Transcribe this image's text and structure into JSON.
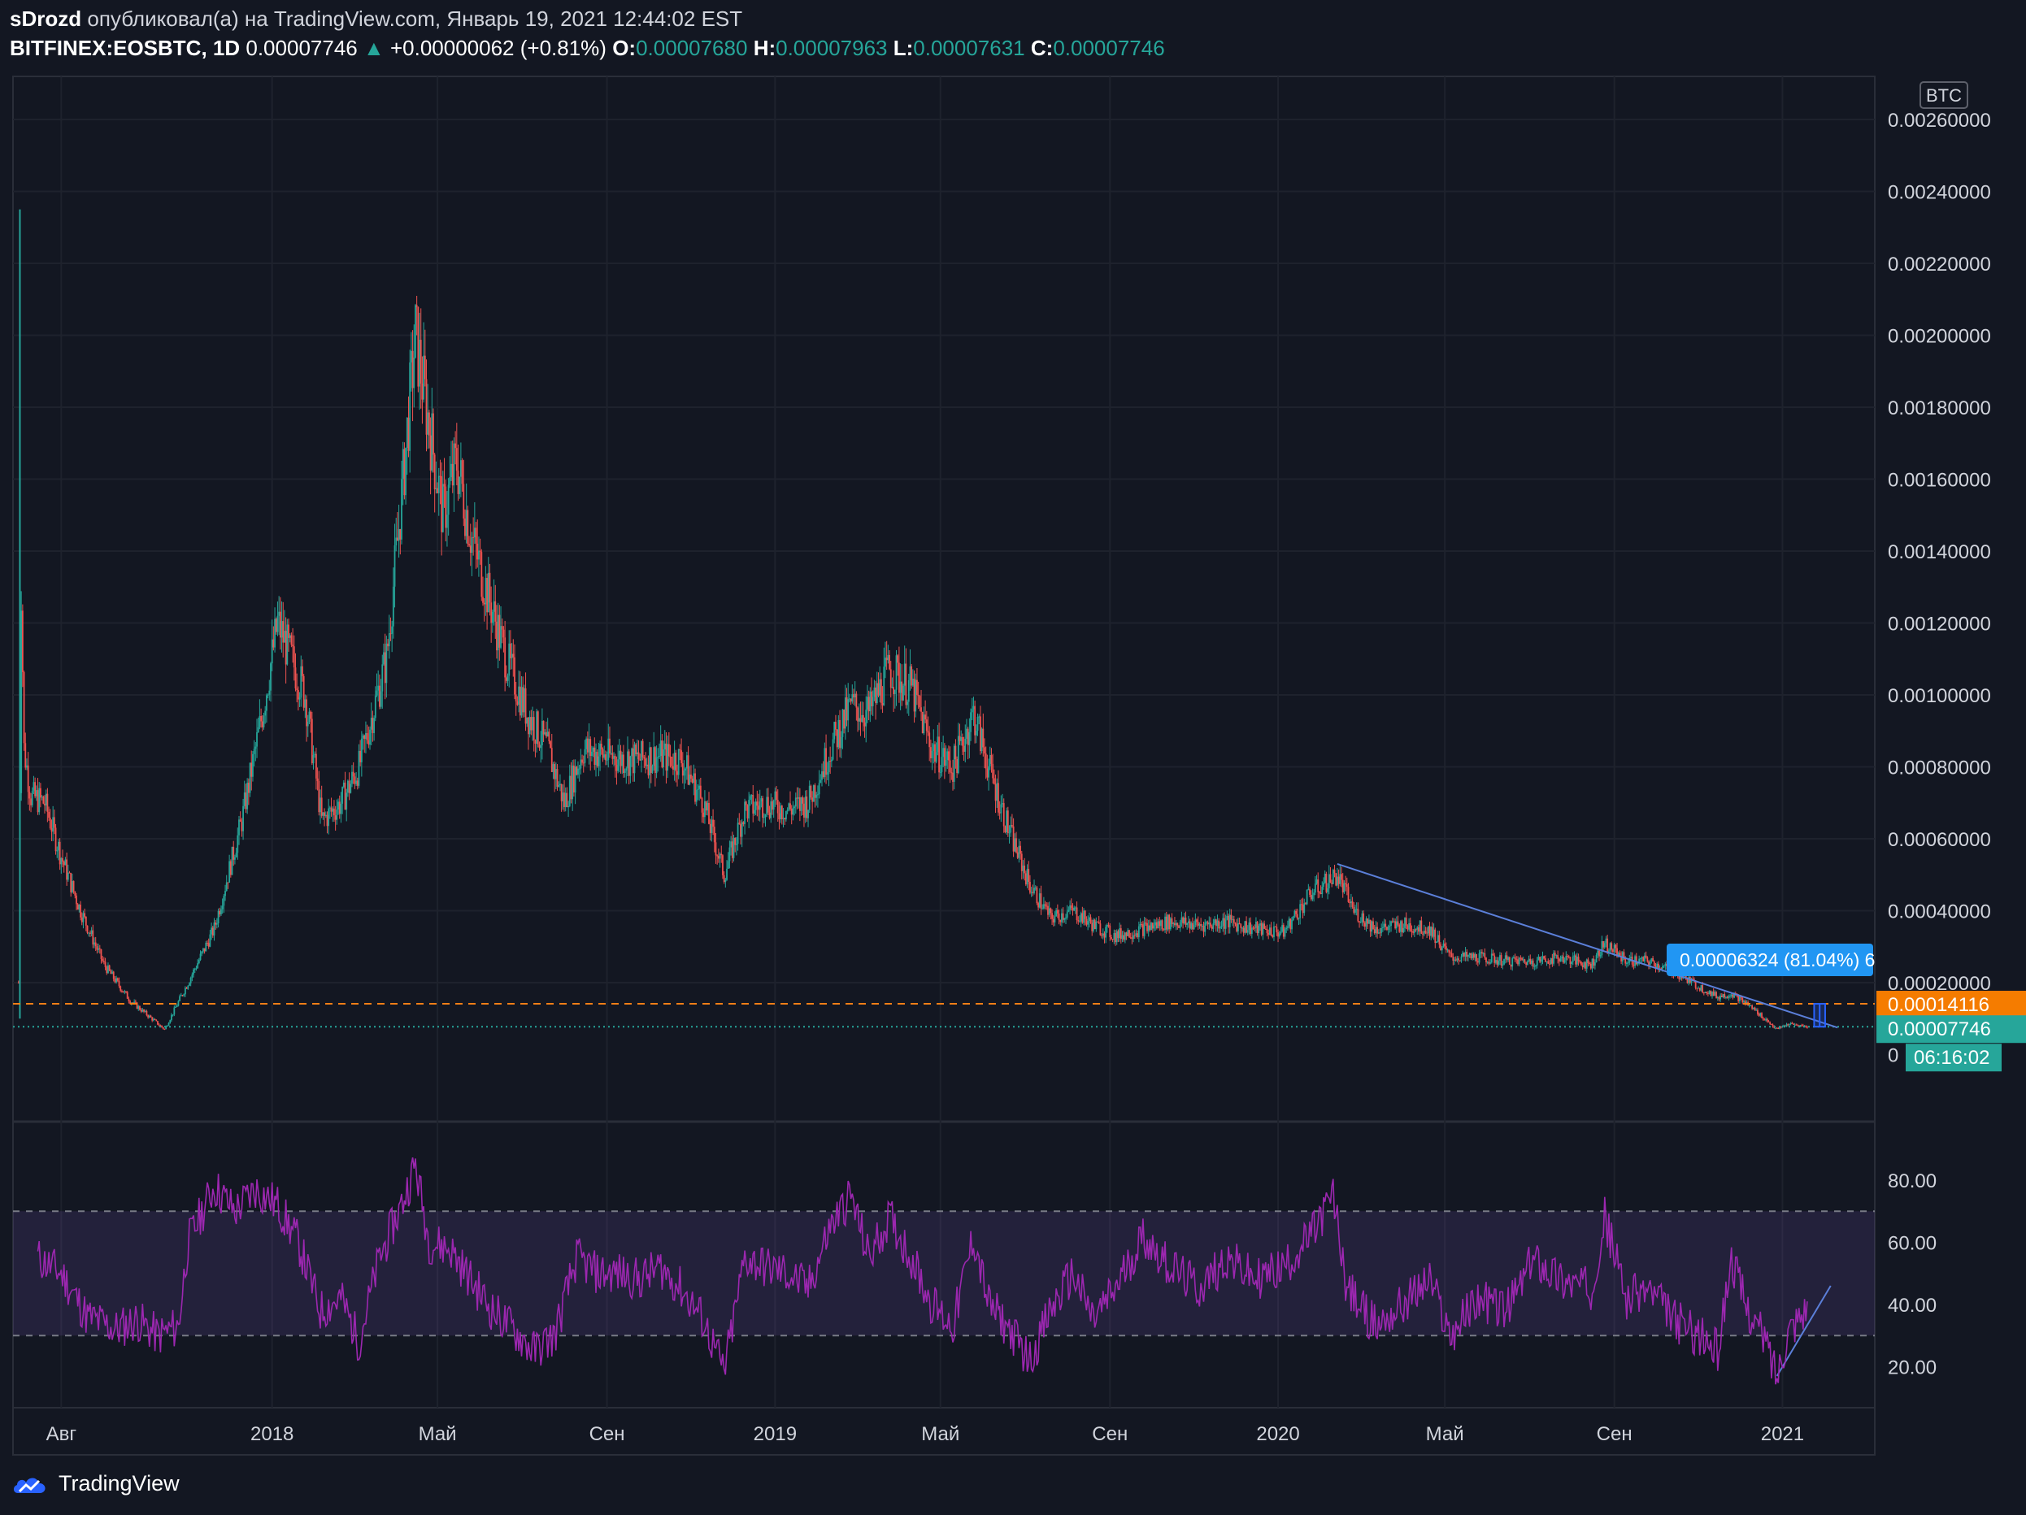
{
  "header": {
    "author": "sDrozd",
    "published_text": "опубликовал(а) на TradingView.com, Январь 19, 2021 12:44:02 EST",
    "symbol": "BITFINEX:EOSBTC, 1D",
    "last_price": "0.00007746",
    "change": "+0.00000062 (+0.81%)",
    "open_label": "O:",
    "open": "0.00007680",
    "high_label": "H:",
    "high": "0.00007963",
    "low_label": "L:",
    "low": "0.00007631",
    "close_label": "C:",
    "close": "0.00007746"
  },
  "footer": {
    "brand": "TradingView"
  },
  "colors": {
    "background": "#131722",
    "up": "#26a69a",
    "down": "#ef5350",
    "rsi": "#9c27b0",
    "trendline": "#5b7fd9",
    "orange_line": "#f57f17"
  },
  "chart_data": [
    {
      "type": "candlestick",
      "currency_label": "BTC",
      "y_ticks": [
        "0.00260000",
        "0.00240000",
        "0.00220000",
        "0.00200000",
        "0.00180000",
        "0.00160000",
        "0.00140000",
        "0.00120000",
        "0.00100000",
        "0.00080000",
        "0.00060000",
        "0.00040000",
        "0.00020000",
        "0"
      ],
      "ylim": [
        -4e-05,
        0.00275
      ],
      "x_ticks": [
        "Авг",
        "2018",
        "Май",
        "Сен",
        "2019",
        "Май",
        "Сен",
        "2020",
        "Май",
        "Сен",
        "2021"
      ],
      "price_labels": {
        "orange_level": "0.00014116",
        "last_price": "0.00007746",
        "countdown": "06:16:02",
        "measure": "0.00006324 (81.04%) 6"
      },
      "levels": {
        "orange": 0.00014116,
        "last": 7.746e-05
      },
      "trendline": {
        "from": [
          "2020-02-13",
          0.00053
        ],
        "to": [
          "2021-02-10",
          7.5e-05
        ]
      },
      "approx_close_path": [
        [
          "2017-07-01",
          0.0002
        ],
        [
          "2017-07-03",
          0.0013
        ],
        [
          "2017-07-05",
          0.00085
        ],
        [
          "2017-07-10",
          0.00072
        ],
        [
          "2017-07-20",
          0.0007
        ],
        [
          "2017-08-01",
          0.00055
        ],
        [
          "2017-08-15",
          0.0004
        ],
        [
          "2017-09-01",
          0.00025
        ],
        [
          "2017-09-20",
          0.00015
        ],
        [
          "2017-10-15",
          7e-05
        ],
        [
          "2017-11-01",
          0.0002
        ],
        [
          "2017-11-20",
          0.00035
        ],
        [
          "2017-12-10",
          0.00065
        ],
        [
          "2017-12-25",
          0.00095
        ],
        [
          "2018-01-05",
          0.0012
        ],
        [
          "2018-01-15",
          0.0011
        ],
        [
          "2018-01-25",
          0.001
        ],
        [
          "2018-02-06",
          0.00065
        ],
        [
          "2018-02-20",
          0.0007
        ],
        [
          "2018-03-05",
          0.0008
        ],
        [
          "2018-03-25",
          0.0011
        ],
        [
          "2018-04-05",
          0.00155
        ],
        [
          "2018-04-15",
          0.002
        ],
        [
          "2018-04-25",
          0.00175
        ],
        [
          "2018-05-05",
          0.0015
        ],
        [
          "2018-05-15",
          0.00165
        ],
        [
          "2018-05-25",
          0.00145
        ],
        [
          "2018-06-05",
          0.0013
        ],
        [
          "2018-06-20",
          0.0011
        ],
        [
          "2018-07-05",
          0.00095
        ],
        [
          "2018-07-20",
          0.00085
        ],
        [
          "2018-08-01",
          0.0007
        ],
        [
          "2018-08-15",
          0.00085
        ],
        [
          "2018-09-01",
          0.00083
        ],
        [
          "2018-09-20",
          0.00082
        ],
        [
          "2018-10-10",
          0.00083
        ],
        [
          "2018-10-25",
          0.00082
        ],
        [
          "2018-11-10",
          0.0007
        ],
        [
          "2018-11-25",
          0.0005
        ],
        [
          "2018-12-10",
          0.00068
        ],
        [
          "2018-12-25",
          0.0007
        ],
        [
          "2019-01-10",
          0.00068
        ],
        [
          "2019-01-25",
          0.0007
        ],
        [
          "2019-02-10",
          0.00085
        ],
        [
          "2019-02-25",
          0.00097
        ],
        [
          "2019-03-10",
          0.00095
        ],
        [
          "2019-03-25",
          0.00107
        ],
        [
          "2019-04-10",
          0.00102
        ],
        [
          "2019-04-25",
          0.00085
        ],
        [
          "2019-05-10",
          0.0008
        ],
        [
          "2019-05-25",
          0.00095
        ],
        [
          "2019-06-05",
          0.0008
        ],
        [
          "2019-06-20",
          0.00062
        ],
        [
          "2019-07-05",
          0.00047
        ],
        [
          "2019-07-20",
          0.00038
        ],
        [
          "2019-08-05",
          0.0004
        ],
        [
          "2019-08-20",
          0.00036
        ],
        [
          "2019-09-05",
          0.00033
        ],
        [
          "2019-09-25",
          0.00035
        ],
        [
          "2019-10-15",
          0.00037
        ],
        [
          "2019-11-05",
          0.00036
        ],
        [
          "2019-11-25",
          0.00037
        ],
        [
          "2019-12-15",
          0.00035
        ],
        [
          "2020-01-05",
          0.00034
        ],
        [
          "2020-01-25",
          0.00045
        ],
        [
          "2020-02-13",
          0.0005
        ],
        [
          "2020-02-25",
          0.0004
        ],
        [
          "2020-03-12",
          0.00035
        ],
        [
          "2020-04-01",
          0.00036
        ],
        [
          "2020-04-20",
          0.00035
        ],
        [
          "2020-05-05",
          0.00027
        ],
        [
          "2020-05-25",
          0.00027
        ],
        [
          "2020-06-15",
          0.00026
        ],
        [
          "2020-07-05",
          0.00026
        ],
        [
          "2020-07-25",
          0.00027
        ],
        [
          "2020-08-15",
          0.00025
        ],
        [
          "2020-08-25",
          0.00031
        ],
        [
          "2020-09-10",
          0.00026
        ],
        [
          "2020-09-25",
          0.00026
        ],
        [
          "2020-10-15",
          0.00023
        ],
        [
          "2020-11-01",
          0.00019
        ],
        [
          "2020-11-15",
          0.00016
        ],
        [
          "2020-11-25",
          0.00017
        ],
        [
          "2020-12-10",
          0.00013
        ],
        [
          "2020-12-22",
          9e-05
        ],
        [
          "2020-12-28",
          7e-05
        ],
        [
          "2021-01-05",
          8.5e-05
        ],
        [
          "2021-01-19",
          7.746e-05
        ]
      ]
    },
    {
      "type": "line",
      "name": "RSI",
      "y_ticks": [
        "80.00",
        "60.00",
        "40.00",
        "20.00"
      ],
      "ylim": [
        10,
        92
      ],
      "bands": [
        30,
        70
      ],
      "trendline": {
        "from": [
          "2020-12-28",
          17
        ],
        "to": [
          "2021-02-05",
          46
        ]
      },
      "approx_series": [
        [
          "2017-07-15",
          55
        ],
        [
          "2017-08-01",
          50
        ],
        [
          "2017-08-20",
          36
        ],
        [
          "2017-09-10",
          32
        ],
        [
          "2017-09-25",
          35
        ],
        [
          "2017-10-10",
          30
        ],
        [
          "2017-10-25",
          33
        ],
        [
          "2017-11-01",
          60
        ],
        [
          "2017-11-20",
          78
        ],
        [
          "2017-12-05",
          70
        ],
        [
          "2017-12-20",
          77
        ],
        [
          "2018-01-05",
          72
        ],
        [
          "2018-01-20",
          60
        ],
        [
          "2018-02-05",
          38
        ],
        [
          "2018-02-20",
          42
        ],
        [
          "2018-03-05",
          28
        ],
        [
          "2018-03-20",
          55
        ],
        [
          "2018-04-05",
          72
        ],
        [
          "2018-04-15",
          85
        ],
        [
          "2018-04-25",
          60
        ],
        [
          "2018-05-10",
          58
        ],
        [
          "2018-05-25",
          48
        ],
        [
          "2018-06-10",
          38
        ],
        [
          "2018-06-25",
          32
        ],
        [
          "2018-07-10",
          25
        ],
        [
          "2018-07-25",
          30
        ],
        [
          "2018-08-10",
          55
        ],
        [
          "2018-08-25",
          50
        ],
        [
          "2018-09-10",
          50
        ],
        [
          "2018-09-25",
          48
        ],
        [
          "2018-10-10",
          52
        ],
        [
          "2018-10-25",
          45
        ],
        [
          "2018-11-10",
          35
        ],
        [
          "2018-11-25",
          18
        ],
        [
          "2018-12-10",
          55
        ],
        [
          "2018-12-25",
          52
        ],
        [
          "2019-01-10",
          50
        ],
        [
          "2019-01-25",
          45
        ],
        [
          "2019-02-10",
          65
        ],
        [
          "2019-02-25",
          75
        ],
        [
          "2019-03-10",
          55
        ],
        [
          "2019-03-25",
          68
        ],
        [
          "2019-04-10",
          55
        ],
        [
          "2019-04-25",
          40
        ],
        [
          "2019-05-10",
          33
        ],
        [
          "2019-05-25",
          62
        ],
        [
          "2019-06-05",
          40
        ],
        [
          "2019-06-20",
          32
        ],
        [
          "2019-07-05",
          22
        ],
        [
          "2019-07-20",
          38
        ],
        [
          "2019-08-05",
          50
        ],
        [
          "2019-08-20",
          35
        ],
        [
          "2019-09-05",
          45
        ],
        [
          "2019-09-25",
          62
        ],
        [
          "2019-10-15",
          52
        ],
        [
          "2019-11-05",
          45
        ],
        [
          "2019-11-25",
          55
        ],
        [
          "2019-12-15",
          48
        ],
        [
          "2020-01-05",
          52
        ],
        [
          "2020-01-25",
          62
        ],
        [
          "2020-02-10",
          75
        ],
        [
          "2020-02-20",
          45
        ],
        [
          "2020-03-12",
          33
        ],
        [
          "2020-04-01",
          40
        ],
        [
          "2020-04-20",
          48
        ],
        [
          "2020-05-05",
          30
        ],
        [
          "2020-05-25",
          42
        ],
        [
          "2020-06-15",
          38
        ],
        [
          "2020-07-05",
          55
        ],
        [
          "2020-07-25",
          48
        ],
        [
          "2020-08-15",
          45
        ],
        [
          "2020-08-25",
          68
        ],
        [
          "2020-09-10",
          42
        ],
        [
          "2020-09-25",
          45
        ],
        [
          "2020-10-15",
          35
        ],
        [
          "2020-11-01",
          30
        ],
        [
          "2020-11-15",
          25
        ],
        [
          "2020-11-25",
          55
        ],
        [
          "2020-12-05",
          40
        ],
        [
          "2020-12-20",
          28
        ],
        [
          "2020-12-28",
          17
        ],
        [
          "2021-01-05",
          32
        ],
        [
          "2021-01-19",
          40
        ]
      ]
    }
  ]
}
